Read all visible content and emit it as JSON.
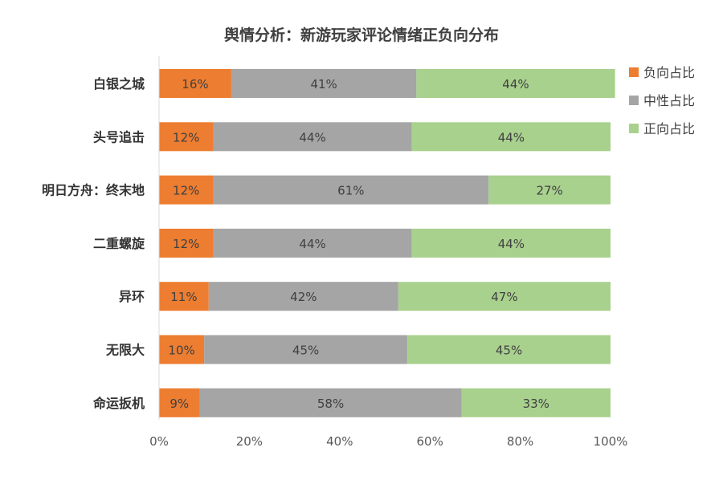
{
  "chart_data": {
    "type": "bar",
    "orientation": "horizontal",
    "stacked": "percent",
    "title": "舆情分析：新游玩家评论情绪正负向分布",
    "categories": [
      "白银之城",
      "头号追击",
      "明日方舟：终末地",
      "二重螺旋",
      "异环",
      "无限大",
      "命运扳机"
    ],
    "series": [
      {
        "name": "负向占比",
        "color": "#ED7D31",
        "values": [
          16,
          12,
          12,
          12,
          11,
          10,
          9
        ]
      },
      {
        "name": "中性占比",
        "color": "#A5A5A5",
        "values": [
          41,
          44,
          61,
          44,
          42,
          45,
          58
        ]
      },
      {
        "name": "正向占比",
        "color": "#A9D18E",
        "values": [
          44,
          44,
          27,
          44,
          47,
          45,
          33
        ]
      }
    ],
    "value_labels": [
      [
        "16%",
        "41%",
        "44%"
      ],
      [
        "12%",
        "44%",
        "44%"
      ],
      [
        "12%",
        "61%",
        "27%"
      ],
      [
        "12%",
        "44%",
        "44%"
      ],
      [
        "11%",
        "42%",
        "47%"
      ],
      [
        "10%",
        "45%",
        "45%"
      ],
      [
        "9%",
        "58%",
        "33%"
      ]
    ],
    "xlim": [
      0,
      100
    ],
    "xticks": [
      "0%",
      "20%",
      "40%",
      "60%",
      "80%",
      "100%"
    ],
    "xtick_values": [
      0,
      20,
      40,
      60,
      80,
      100
    ],
    "grid": false,
    "legend_position": "right"
  }
}
